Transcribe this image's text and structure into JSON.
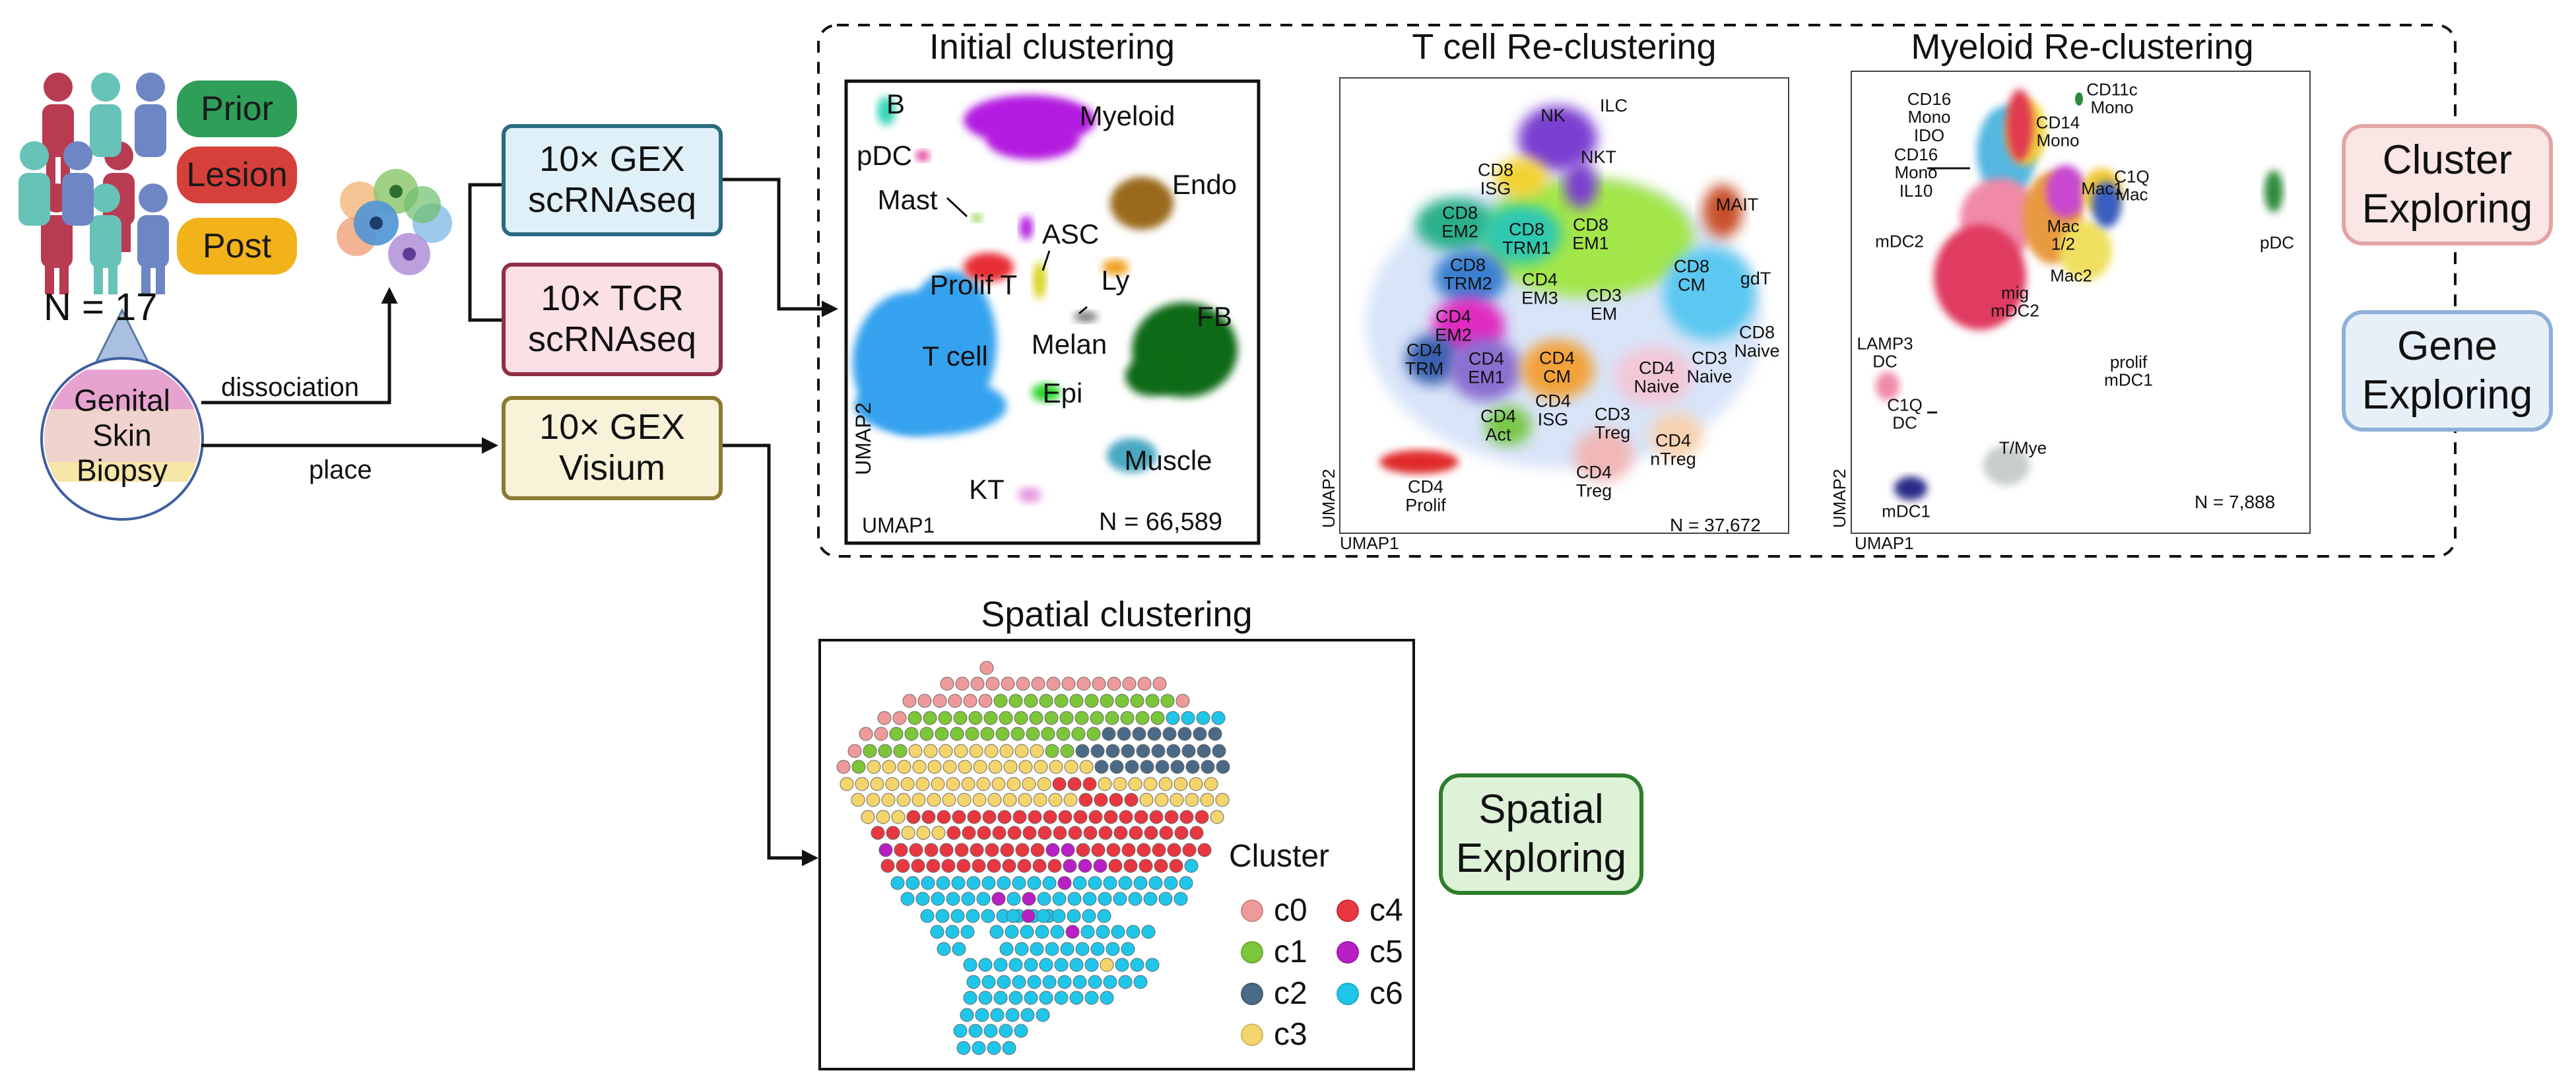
{
  "cohort": {
    "groups": [
      "Prior",
      "Lesion",
      "Post"
    ],
    "n_label": "N = 17"
  },
  "biopsy": {
    "label_lines": [
      "Genital",
      "Skin",
      "Biopsy"
    ]
  },
  "steps": {
    "dissociation": "dissociation",
    "place": "place"
  },
  "assays": [
    {
      "line1": "10× GEX",
      "line2": "scRNAseq"
    },
    {
      "line1": "10× TCR",
      "line2": "scRNAseq"
    },
    {
      "line1": "10× GEX",
      "line2": "Visium"
    }
  ],
  "panels": {
    "initial": {
      "title": "Initial clustering",
      "n": "N = 66,589",
      "xlabel": "UMAP1",
      "ylabel": "UMAP2",
      "labels": [
        "B",
        "pDC",
        "Myeloid",
        "Endo",
        "Mast",
        "ASC",
        "Prolif T",
        "Ly",
        "FB",
        "Melan",
        "T cell",
        "Epi",
        "Muscle",
        "KT"
      ]
    },
    "tcell": {
      "title": "T cell Re-clustering",
      "n": "N = 37,672",
      "xlabel": "UMAP1",
      "ylabel": "UMAP2",
      "labels": [
        "NK",
        "ILC",
        "NKT",
        "CD8\nISG",
        "MAIT",
        "CD8\nEM2",
        "CD8\nTRM1",
        "CD8\nEM1",
        "CD8\nTRM2",
        "CD4\nEM3",
        "CD3\nEM",
        "CD8\nCM",
        "gdT",
        "CD4\nEM2",
        "CD4\nTRM",
        "CD4\nEM1",
        "CD4\nCM",
        "CD4\nNaive",
        "CD3\nNaive",
        "CD8\nNaive",
        "CD4\nISG",
        "CD4\nAct",
        "CD3\nTreg",
        "CD4\nnTreg",
        "CD4\nTreg",
        "CD4\nProlif"
      ]
    },
    "myeloid": {
      "title": "Myeloid Re-clustering",
      "n": "N = 7,888",
      "xlabel": "UMAP1",
      "ylabel": "UMAP2",
      "labels": [
        "CD16\nMono\nIDO",
        "CD11c\nMono",
        "CD14\nMono",
        "CD16\nMono\nIL10",
        "C1Q\nMac",
        "Mac1",
        "pDC",
        "mDC2",
        "Mac\n1/2",
        "mig\nmDC2",
        "Mac2",
        "LAMP3\nDC",
        "prolif\nmDC1",
        "C1Q\nDC",
        "T/Mye",
        "mDC1"
      ]
    }
  },
  "explore": {
    "cluster": [
      "Cluster",
      "Exploring"
    ],
    "gene": [
      "Gene",
      "Exploring"
    ],
    "spatial": [
      "Spatial",
      "Exploring"
    ]
  },
  "spatial": {
    "title": "Spatial clustering",
    "legend_title": "Cluster",
    "legend": [
      {
        "name": "c0",
        "color": "#ef9a9a"
      },
      {
        "name": "c1",
        "color": "#7cc63a"
      },
      {
        "name": "c2",
        "color": "#4a6a86"
      },
      {
        "name": "c3",
        "color": "#f3d56c"
      },
      {
        "name": "c4",
        "color": "#e8373f"
      },
      {
        "name": "c5",
        "color": "#b81fc4"
      },
      {
        "name": "c6",
        "color": "#1fc6ea"
      }
    ]
  },
  "colors": {
    "prior": "#2e9e59",
    "lesion": "#d6403a",
    "post": "#f2b21a",
    "gex_fill": "#dff0f9",
    "gex_border": "#2b6a80",
    "tcr_fill": "#fbe0e6",
    "tcr_border": "#8e2f45",
    "visium_fill": "#f7f2d8",
    "visium_border": "#8d7a32",
    "cluster_fill": "#fbe6e6",
    "cluster_border": "#e3a4a4",
    "gene_fill": "#e7f0f9",
    "gene_border": "#8fb0d8",
    "spatial_fill": "#def2d8",
    "spatial_border": "#2e7c2c"
  }
}
